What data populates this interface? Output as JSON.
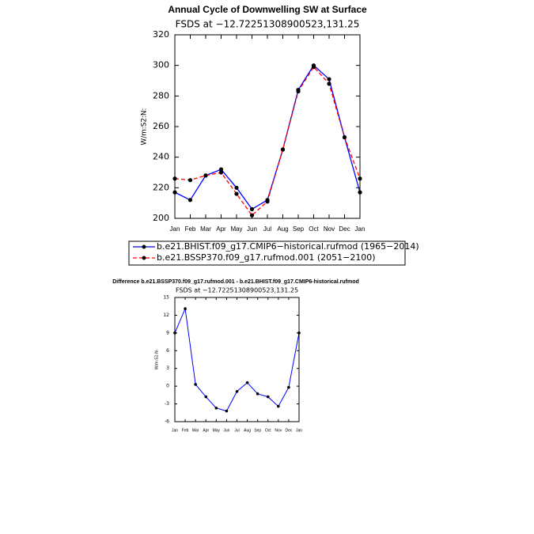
{
  "chart_data": [
    {
      "type": "line",
      "title": "Annual Cycle of Downwelling SW at Surface",
      "subtitle": "FSDS at −12.72251308900523,131.25",
      "y_label": "W/m:S2:N:",
      "categories": [
        "Jan",
        "Feb",
        "Mar",
        "Apr",
        "May",
        "Jun",
        "Jul",
        "Aug",
        "Sep",
        "Oct",
        "Nov",
        "Dec",
        "Jan"
      ],
      "series": [
        {
          "name": "b.e21.BHIST.f09_g17.CMIP6−historical.rufmod (1965−2014)",
          "color": "#0000ff",
          "linestyle": "solid",
          "values": [
            217,
            212,
            228,
            232,
            220,
            206,
            212,
            245,
            284,
            300,
            291,
            253,
            217
          ]
        },
        {
          "name": "b.e21.BSSP370.f09_g17.rufmod.001 (2051−2100)",
          "color": "#ff0000",
          "linestyle": "dashed",
          "values": [
            226,
            225,
            228,
            230,
            216,
            202,
            211,
            245,
            283,
            299,
            288,
            253,
            226
          ]
        }
      ],
      "marker_color": "#000000",
      "ylim": [
        200,
        320
      ],
      "yticks": [
        200,
        220,
        240,
        260,
        280,
        300,
        320
      ],
      "legend": "bottom"
    },
    {
      "type": "line",
      "title": "Difference b.e21.BSSP370.f09_g17.rufmod.001 - b.e21.BHIST.f09_g17.CMIP6-historical.rufmod",
      "subtitle": "FSDS at −12.72251308900523,131.25",
      "y_label": "W/m:S2:N:",
      "categories": [
        "Jan",
        "Feb",
        "Mar",
        "Apr",
        "May",
        "Jun",
        "Jul",
        "Aug",
        "Sep",
        "Oct",
        "Nov",
        "Dec",
        "Jan"
      ],
      "series": [
        {
          "color": "#0000ff",
          "linestyle": "solid",
          "values": [
            9,
            13.1,
            0.3,
            -1.8,
            -3.7,
            -4.2,
            -0.9,
            0.6,
            -1.3,
            -1.8,
            -3.4,
            -0.2,
            9
          ]
        }
      ],
      "marker_color": "#000000",
      "ylim": [
        -6,
        15
      ],
      "yticks": [
        -6,
        -3,
        0,
        3,
        6,
        9,
        12,
        15
      ]
    }
  ]
}
